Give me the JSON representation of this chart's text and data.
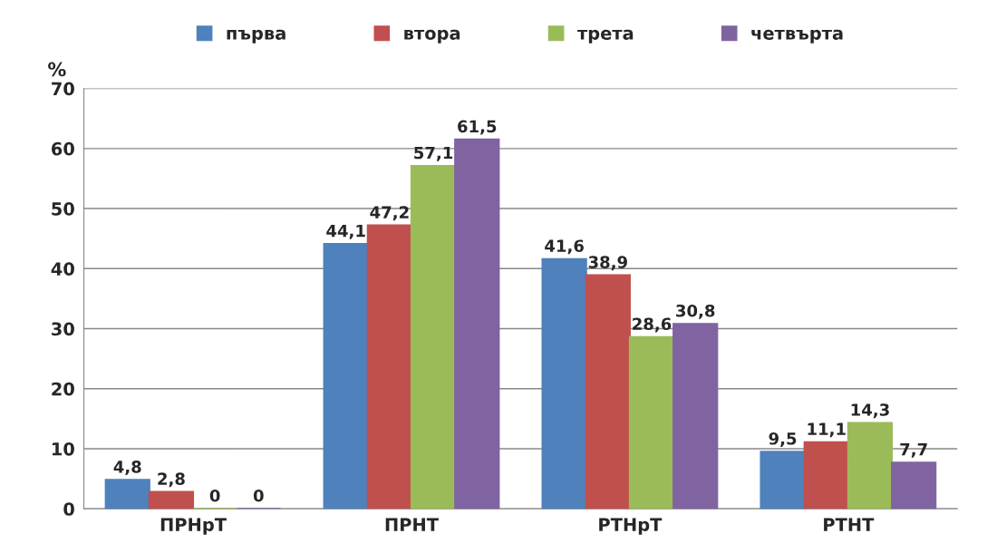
{
  "chart_data": {
    "type": "bar",
    "ylabel": "%",
    "categories": [
      "ПРНрТ",
      "ПРНТ",
      "РТНрТ",
      "РТНТ"
    ],
    "series": [
      {
        "name": "първа",
        "color": "#4f81bd",
        "values": [
          4.8,
          44.1,
          41.6,
          9.5
        ],
        "value_labels": [
          "4,8",
          "44,1",
          "41,6",
          "9,5"
        ]
      },
      {
        "name": "втора",
        "color": "#c0504d",
        "values": [
          2.8,
          47.2,
          38.9,
          11.1
        ],
        "value_labels": [
          "2,8",
          "47,2",
          "38,9",
          "11,1"
        ]
      },
      {
        "name": "трета",
        "color": "#9bbb59",
        "values": [
          0,
          57.1,
          28.6,
          14.3
        ],
        "value_labels": [
          "0",
          "57,1",
          "28,6",
          "14,3"
        ]
      },
      {
        "name": "четвърта",
        "color": "#8064a2",
        "values": [
          0,
          61.5,
          30.8,
          7.7
        ],
        "value_labels": [
          "0",
          "61,5",
          "30,8",
          "7,7"
        ]
      }
    ],
    "ylim": [
      0,
      70
    ],
    "yticks": [
      0,
      10,
      20,
      30,
      40,
      50,
      60,
      70
    ],
    "grid": "y",
    "legend": "top"
  }
}
